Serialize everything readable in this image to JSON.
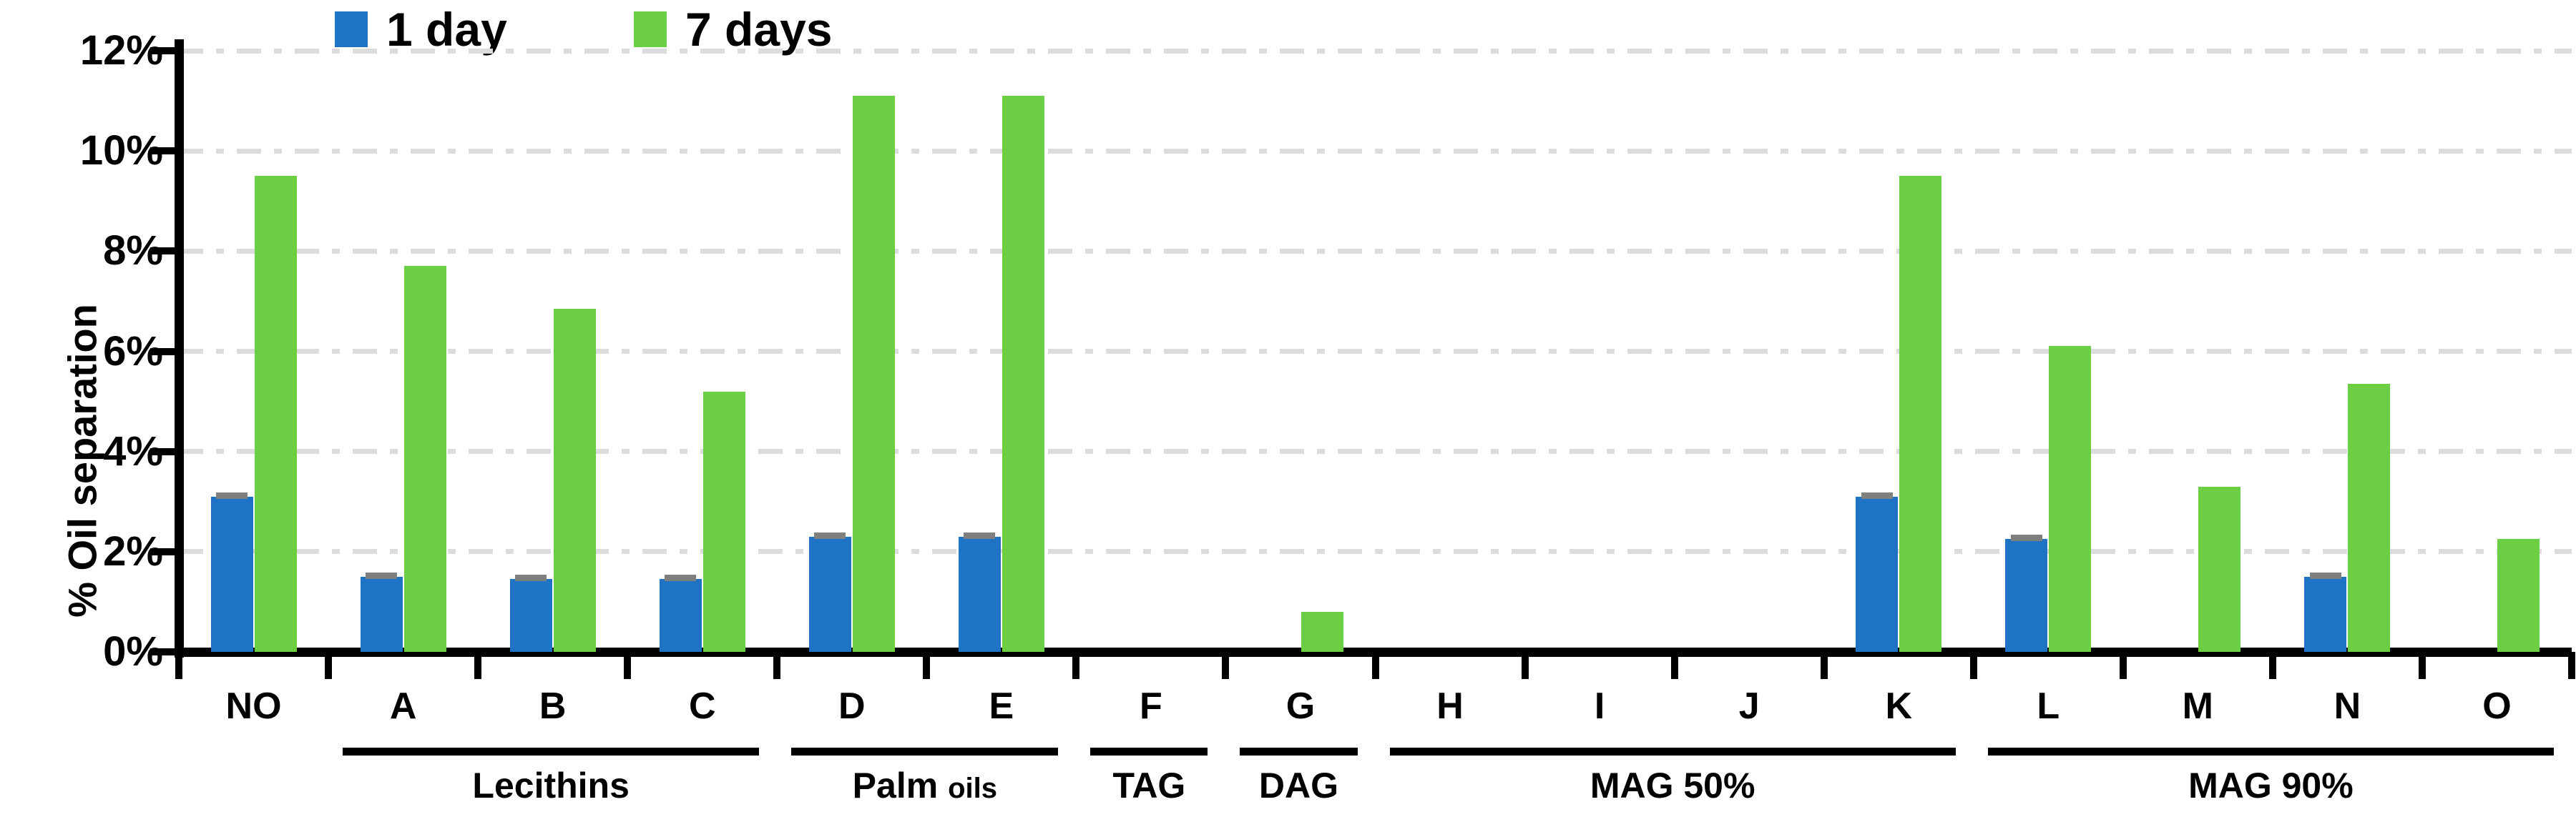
{
  "figure": {
    "kind": "grouped-bar-chart",
    "background": "#ffffff",
    "axis_color": "#000000",
    "gridline_color": "#dcdcdc",
    "error_cap_color": "#7f7f7f"
  },
  "legend": {
    "items": [
      {
        "label": "1 day",
        "color": "#1f73c4"
      },
      {
        "label": "7 days",
        "color": "#6cce43"
      }
    ]
  },
  "y_axis": {
    "title": "% Oil separation",
    "tick_labels": [
      "0%",
      "2%",
      "4%",
      "6%",
      "8%",
      "10%",
      "12%"
    ],
    "min": 0,
    "max": 12,
    "tick_step": 2
  },
  "chart_data": {
    "type": "bar",
    "title": "",
    "xlabel": "",
    "ylabel": "% Oil separation",
    "ylim": [
      0,
      12
    ],
    "grid": true,
    "legend_position": "top",
    "categories": [
      "NO",
      "A",
      "B",
      "C",
      "D",
      "E",
      "F",
      "G",
      "H",
      "I",
      "J",
      "K",
      "L",
      "M",
      "N",
      "O"
    ],
    "series": [
      {
        "name": "1 day",
        "color": "#1f73c4",
        "values": [
          3.1,
          1.5,
          1.45,
          1.45,
          2.3,
          2.3,
          0,
          0,
          0,
          0,
          0,
          3.1,
          2.25,
          0,
          1.5,
          0
        ]
      },
      {
        "name": "7 days",
        "color": "#6cce43",
        "values": [
          9.5,
          7.7,
          6.85,
          5.2,
          11.1,
          11.1,
          0,
          0.8,
          0,
          0,
          0,
          9.5,
          6.1,
          3.3,
          5.35,
          2.25
        ]
      }
    ],
    "error_caps_on_1day": [
      true,
      true,
      true,
      true,
      true,
      true,
      false,
      false,
      false,
      false,
      false,
      true,
      true,
      false,
      true,
      false
    ],
    "groups": [
      {
        "label": "Lecithins",
        "start": "A",
        "end": "C"
      },
      {
        "label": "Palm oils",
        "label_main": "Palm ",
        "label_small": "oils",
        "start": "D",
        "end": "E"
      },
      {
        "label": "TAG",
        "start": "F",
        "end": "F"
      },
      {
        "label": "DAG",
        "start": "G",
        "end": "G"
      },
      {
        "label": "MAG 50%",
        "start": "H",
        "end": "K"
      },
      {
        "label": "MAG 90%",
        "start": "L",
        "end": "O"
      }
    ]
  }
}
